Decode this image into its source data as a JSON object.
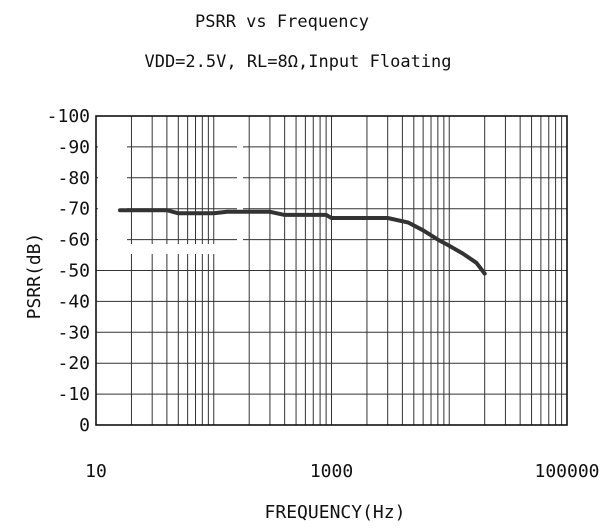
{
  "chart_data": {
    "type": "line",
    "title": "PSRR vs Frequency",
    "subtitle": "VDD=2.5V, RL=8Ω,Input Floating",
    "xlabel": "FREQUENCY(Hz)",
    "ylabel": "PSRR(dB)",
    "x_scale": "log",
    "xlim": [
      10,
      100000
    ],
    "ylim": [
      0,
      -100
    ],
    "x_ticks": [
      "10",
      "1000",
      "100000"
    ],
    "y_ticks": [
      "0",
      "-10",
      "-20",
      "-30",
      "-40",
      "-50",
      "-60",
      "-70",
      "-80",
      "-90",
      "-100"
    ],
    "grid": true,
    "series": [
      {
        "color": "#333333",
        "x": [
          16,
          20,
          40,
          50,
          60,
          100,
          130,
          300,
          400,
          900,
          1000,
          3000,
          4500,
          6000,
          8000,
          10000,
          13000,
          17000,
          20000
        ],
        "y": [
          -69.5,
          -69.5,
          -69.5,
          -68.5,
          -68.5,
          -68.5,
          -69,
          -69,
          -68,
          -68,
          -67,
          -67,
          -65.5,
          -63,
          -60,
          -58,
          -55.5,
          -52.5,
          -49
        ]
      }
    ]
  }
}
